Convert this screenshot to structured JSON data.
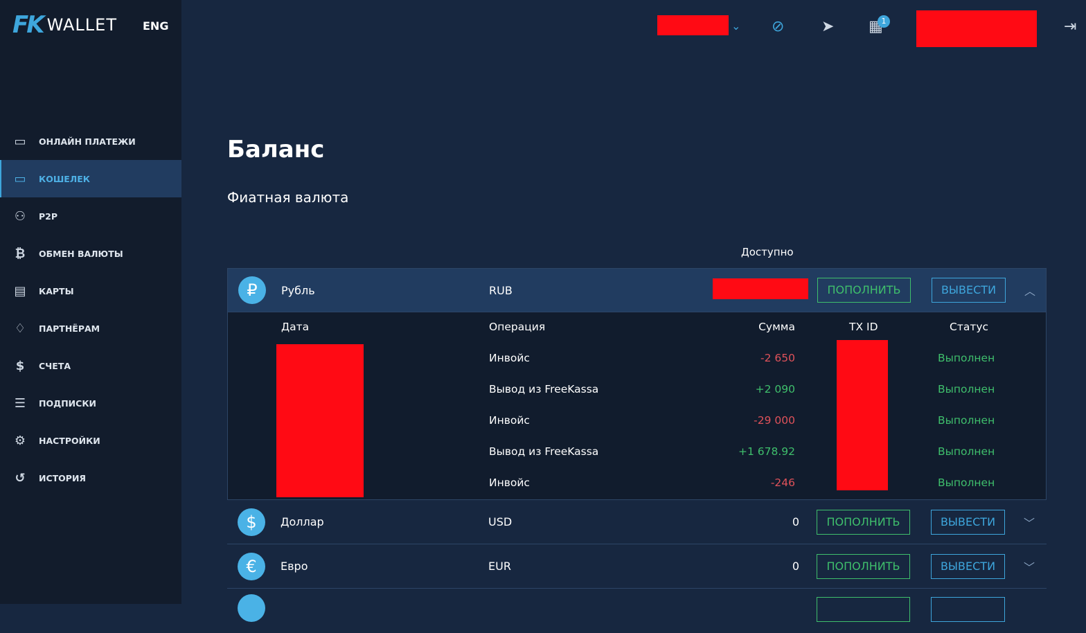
{
  "brand": {
    "logo_mark": "FK",
    "logo_text": "WALLET",
    "lang": "ENG"
  },
  "sidebar": {
    "items": [
      {
        "label": "ОНЛАЙН ПЛАТЕЖИ",
        "icon": "payment-icon"
      },
      {
        "label": "КОШЕЛЕК",
        "icon": "wallet-icon",
        "active": true
      },
      {
        "label": "P2P",
        "icon": "users-exchange-icon"
      },
      {
        "label": "ОБМЕН ВАЛЮТЫ",
        "icon": "bitcoin-exchange-icon"
      },
      {
        "label": "КАРТЫ",
        "icon": "card-icon"
      },
      {
        "label": "ПАРТНЁРАМ",
        "icon": "handshake-icon"
      },
      {
        "label": "СЧЕТА",
        "icon": "invoice-icon"
      },
      {
        "label": "ПОДПИСКИ",
        "icon": "list-icon"
      },
      {
        "label": "НАСТРОЙКИ",
        "icon": "gear-icon"
      },
      {
        "label": "ИСТОРИЯ",
        "icon": "history-icon"
      }
    ]
  },
  "header": {
    "notifications_count": "1"
  },
  "main": {
    "title": "Баланс",
    "subtitle": "Фиатная валюта",
    "available_label": "Доступно",
    "deposit_label": "ПОПОЛНИТЬ",
    "withdraw_label": "ВЫВЕСТИ",
    "currencies": [
      {
        "name": "Рубль",
        "code": "RUB",
        "symbol": "₽",
        "balance": null
      },
      {
        "name": "Доллар",
        "code": "USD",
        "symbol": "$",
        "balance": "0"
      },
      {
        "name": "Евро",
        "code": "EUR",
        "symbol": "€",
        "balance": "0"
      }
    ],
    "history": {
      "headers": {
        "date": "Дата",
        "operation": "Операция",
        "sum": "Сумма",
        "txid": "TX ID",
        "status": "Статус"
      },
      "rows": [
        {
          "operation": "Инвойс",
          "sum": "-2 650",
          "status": "Выполнен"
        },
        {
          "operation": "Вывод из FreeKassa",
          "sum": "+2 090",
          "status": "Выполнен"
        },
        {
          "operation": "Инвойс",
          "sum": "-29 000",
          "status": "Выполнен"
        },
        {
          "operation": "Вывод из FreeKassa",
          "sum": "+1 678.92",
          "status": "Выполнен"
        },
        {
          "operation": "Инвойс",
          "sum": "-246",
          "status": "Выполнен"
        }
      ]
    }
  },
  "colors": {
    "accent": "#3ea6dc",
    "positive": "#3fbf6c",
    "negative": "#e0525a",
    "redaction": "#ff0a14"
  }
}
